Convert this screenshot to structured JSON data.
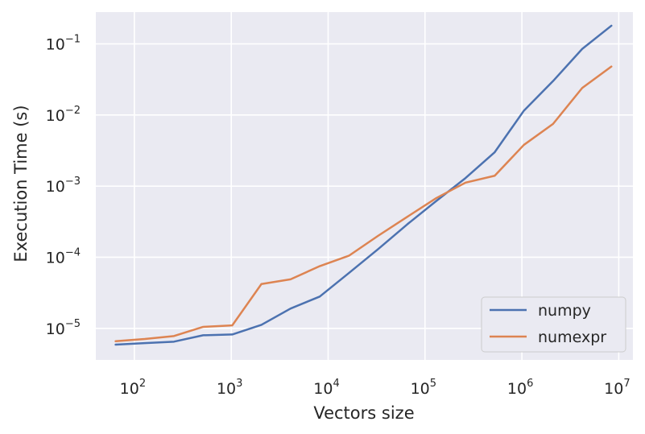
{
  "chart_data": {
    "type": "line",
    "xlabel": "Vectors size",
    "ylabel": "Execution Time (s)",
    "xscale": "log",
    "yscale": "log",
    "xlim": [
      40,
      14000000
    ],
    "ylim": [
      3.6e-06,
      0.28
    ],
    "grid": true,
    "legend_position": "bottom-right",
    "x_ticks": [
      {
        "value": 100,
        "base": "10",
        "exp": "2"
      },
      {
        "value": 1000,
        "base": "10",
        "exp": "3"
      },
      {
        "value": 10000,
        "base": "10",
        "exp": "4"
      },
      {
        "value": 100000,
        "base": "10",
        "exp": "5"
      },
      {
        "value": 1000000,
        "base": "10",
        "exp": "6"
      },
      {
        "value": 10000000,
        "base": "10",
        "exp": "7"
      }
    ],
    "y_ticks": [
      {
        "value": 1e-05,
        "base": "10",
        "exp": "−5"
      },
      {
        "value": 0.0001,
        "base": "10",
        "exp": "−4"
      },
      {
        "value": 0.001,
        "base": "10",
        "exp": "−3"
      },
      {
        "value": 0.01,
        "base": "10",
        "exp": "−2"
      },
      {
        "value": 0.1,
        "base": "10",
        "exp": "−1"
      }
    ],
    "x": [
      64,
      128,
      256,
      512,
      1024,
      2048,
      4096,
      8192,
      16384,
      32768,
      65536,
      131072,
      262144,
      524288,
      1048576,
      2097152,
      4194304,
      8388608
    ],
    "series": [
      {
        "name": "numpy",
        "color": "#4c72b0",
        "values": [
          5.9e-06,
          6.2e-06,
          6.5e-06,
          8e-06,
          8.2e-06,
          1.12e-05,
          1.9e-05,
          2.8e-05,
          6e-05,
          0.00013,
          0.00029,
          0.00062,
          0.0013,
          0.003,
          0.0115,
          0.03,
          0.085,
          0.18
        ]
      },
      {
        "name": "numexpr",
        "color": "#dd8452",
        "values": [
          6.6e-06,
          7.1e-06,
          7.8e-06,
          1.05e-05,
          1.1e-05,
          4.2e-05,
          4.9e-05,
          7.5e-05,
          0.000105,
          0.0002,
          0.00037,
          0.00068,
          0.00112,
          0.0014,
          0.0038,
          0.0075,
          0.024,
          0.048
        ]
      }
    ]
  }
}
